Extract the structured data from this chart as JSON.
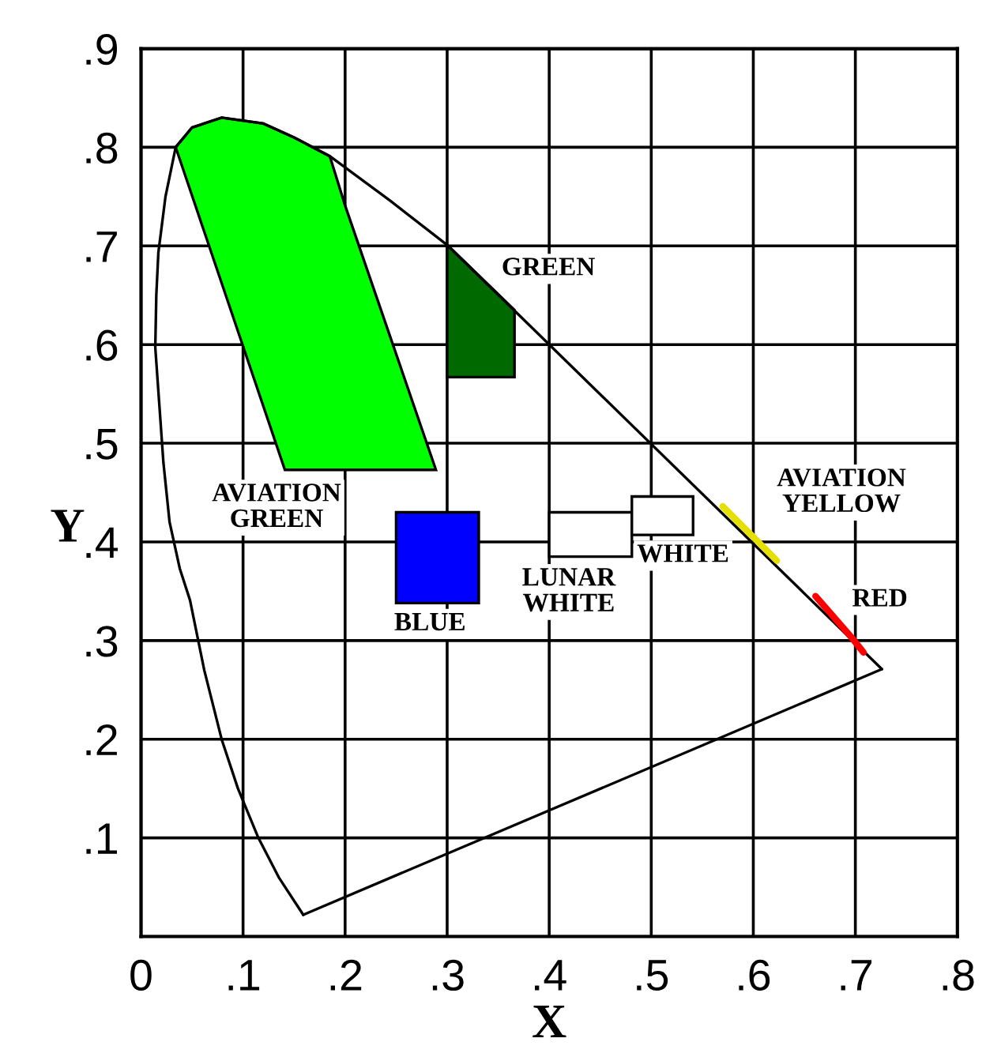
{
  "chart_data": {
    "type": "line",
    "xlabel": "X",
    "ylabel": "Y",
    "xlim": [
      0,
      0.8
    ],
    "ylim": [
      0,
      0.9
    ],
    "xticks": [
      {
        "value": 0,
        "label": "0"
      },
      {
        "value": 0.1,
        "label": ".1"
      },
      {
        "value": 0.2,
        "label": ".2"
      },
      {
        "value": 0.3,
        "label": ".3"
      },
      {
        "value": 0.4,
        "label": ".4"
      },
      {
        "value": 0.5,
        "label": ".5"
      },
      {
        "value": 0.6,
        "label": ".6"
      },
      {
        "value": 0.7,
        "label": ".7"
      },
      {
        "value": 0.8,
        "label": ".8"
      }
    ],
    "yticks": [
      {
        "value": 0,
        "label": null
      },
      {
        "value": 0.1,
        "label": ".1"
      },
      {
        "value": 0.2,
        "label": ".2"
      },
      {
        "value": 0.3,
        "label": ".3"
      },
      {
        "value": 0.4,
        "label": ".4"
      },
      {
        "value": 0.5,
        "label": ".5"
      },
      {
        "value": 0.6,
        "label": ".6"
      },
      {
        "value": 0.7,
        "label": ".7"
      },
      {
        "value": 0.8,
        "label": ".8"
      },
      {
        "value": 0.9,
        "label": ".9"
      }
    ],
    "grid": true,
    "series": [
      {
        "color": "#000000",
        "x": [
          0.159,
          0.135,
          0.115,
          0.095,
          0.079,
          0.062,
          0.048,
          0.038,
          0.028,
          0.022,
          0.014,
          0.015,
          0.017,
          0.024,
          0.034,
          0.05,
          0.079,
          0.12,
          0.15,
          0.185,
          0.244,
          0.3,
          0.726
        ],
        "values": [
          0.022,
          0.06,
          0.1,
          0.15,
          0.2,
          0.27,
          0.341,
          0.373,
          0.42,
          0.48,
          0.597,
          0.65,
          0.693,
          0.75,
          0.8,
          0.82,
          0.83,
          0.824,
          0.81,
          0.791,
          0.746,
          0.701,
          0.271
        ]
      },
      {
        "color": "#000000",
        "x": [
          0.159,
          0.726
        ],
        "values": [
          0.022,
          0.271
        ]
      },
      {
        "type": "area",
        "name": "AVIATION\nGREEN",
        "color": "#00ff00",
        "x": [
          0.034,
          0.05,
          0.079,
          0.12,
          0.15,
          0.185,
          0.2,
          0.289,
          0.141,
          0.034
        ],
        "values": [
          0.8,
          0.82,
          0.83,
          0.824,
          0.81,
          0.791,
          0.741,
          0.473,
          0.473,
          0.8
        ]
      },
      {
        "type": "area",
        "name": "GREEN",
        "color": "#006a00",
        "x": [
          0.3,
          0.366,
          0.366,
          0.3,
          0.3
        ],
        "values": [
          0.701,
          0.635,
          0.567,
          0.567,
          0.701
        ]
      },
      {
        "type": "area",
        "name": "BLUE",
        "color": "#0000ff",
        "x": [
          0.25,
          0.331,
          0.331,
          0.25,
          0.25
        ],
        "values": [
          0.43,
          0.43,
          0.338,
          0.338,
          0.43
        ]
      },
      {
        "type": "area",
        "name": "LUNAR\nWHITE",
        "color": "#ffffff",
        "x": [
          0.4,
          0.481,
          0.481,
          0.4,
          0.4
        ],
        "values": [
          0.43,
          0.43,
          0.385,
          0.385,
          0.43
        ]
      },
      {
        "type": "area",
        "name": "WHITE",
        "color": "#ffffff",
        "x": [
          0.481,
          0.541,
          0.541,
          0.481,
          0.481
        ],
        "values": [
          0.446,
          0.446,
          0.407,
          0.407,
          0.446
        ]
      },
      {
        "name": "AVIATION\nYELLOW",
        "color": "#e6e000",
        "x": [
          0.57,
          0.623
        ],
        "values": [
          0.436,
          0.381
        ]
      },
      {
        "name": "RED",
        "color": "#ff0000",
        "x": [
          0.661,
          0.698,
          0.708
        ],
        "values": [
          0.345,
          0.301,
          0.288
        ]
      }
    ]
  }
}
